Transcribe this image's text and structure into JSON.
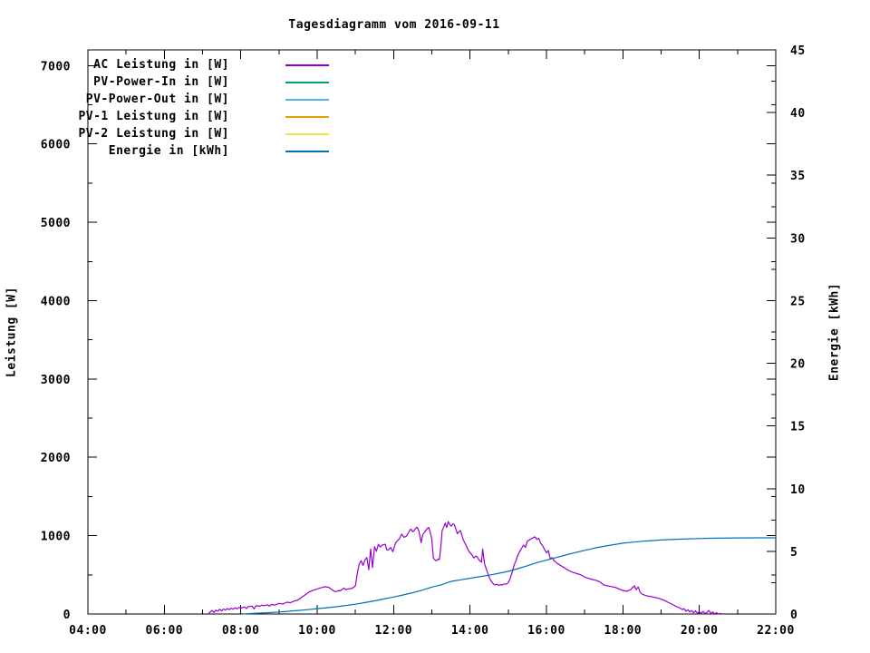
{
  "chart_data": {
    "type": "line",
    "title": "Tagesdiagramm vom 2016-09-11",
    "ylabel": "Leistung [W]",
    "y2label": "Energie [kWh]",
    "legend_position": "top-left-inside",
    "grid": false,
    "x_axis": {
      "lim": [
        4,
        22
      ],
      "major_values": [
        4,
        6,
        8,
        10,
        12,
        14,
        16,
        18,
        20,
        22
      ],
      "major_labels": [
        "04:00",
        "06:00",
        "08:00",
        "10:00",
        "12:00",
        "14:00",
        "16:00",
        "18:00",
        "20:00",
        "22:00"
      ],
      "minor_values": [
        5,
        7,
        9,
        11,
        13,
        15,
        17,
        19,
        21
      ]
    },
    "y_axis": {
      "lim": [
        0,
        7200
      ],
      "major_values": [
        0,
        1000,
        2000,
        3000,
        4000,
        5000,
        6000,
        7000
      ],
      "major_labels": [
        "0",
        "1000",
        "2000",
        "3000",
        "4000",
        "5000",
        "6000",
        "7000"
      ],
      "minor_values": [
        500,
        1500,
        2500,
        3500,
        4500,
        5500,
        6500
      ]
    },
    "y2_axis": {
      "lim": [
        0,
        45
      ],
      "major_values": [
        0,
        5,
        10,
        15,
        20,
        25,
        30,
        35,
        40,
        45
      ],
      "major_labels": [
        "0",
        "5",
        "10",
        "15",
        "20",
        "25",
        "30",
        "35",
        "40",
        "45"
      ],
      "minor_values": [
        2.5,
        7.5,
        12.5,
        17.5,
        22.5,
        27.5,
        32.5,
        37.5,
        42.5
      ]
    },
    "series": [
      {
        "name": "AC Leistung in [W]",
        "color": "#9400d3",
        "axis": "y1",
        "points": [
          [
            7.15,
            0
          ],
          [
            7.2,
            25
          ],
          [
            7.25,
            45
          ],
          [
            7.3,
            20
          ],
          [
            7.35,
            50
          ],
          [
            7.4,
            35
          ],
          [
            7.45,
            60
          ],
          [
            7.5,
            40
          ],
          [
            7.55,
            65
          ],
          [
            7.6,
            50
          ],
          [
            7.65,
            70
          ],
          [
            7.7,
            55
          ],
          [
            7.75,
            75
          ],
          [
            7.8,
            60
          ],
          [
            7.85,
            80
          ],
          [
            7.9,
            65
          ],
          [
            7.95,
            85
          ],
          [
            8.0,
            75
          ],
          [
            8.1,
            90
          ],
          [
            8.15,
            70
          ],
          [
            8.2,
            95
          ],
          [
            8.3,
            100
          ],
          [
            8.35,
            65
          ],
          [
            8.4,
            105
          ],
          [
            8.5,
            100
          ],
          [
            8.55,
            115
          ],
          [
            8.6,
            105
          ],
          [
            8.7,
            118
          ],
          [
            8.75,
            100
          ],
          [
            8.8,
            122
          ],
          [
            8.9,
            115
          ],
          [
            9.0,
            135
          ],
          [
            9.1,
            128
          ],
          [
            9.2,
            150
          ],
          [
            9.3,
            145
          ],
          [
            9.4,
            165
          ],
          [
            9.5,
            180
          ],
          [
            9.6,
            215
          ],
          [
            9.7,
            250
          ],
          [
            9.8,
            285
          ],
          [
            9.9,
            305
          ],
          [
            10.0,
            320
          ],
          [
            10.1,
            335
          ],
          [
            10.2,
            348
          ],
          [
            10.3,
            340
          ],
          [
            10.4,
            305
          ],
          [
            10.45,
            290
          ],
          [
            10.5,
            285
          ],
          [
            10.55,
            300
          ],
          [
            10.6,
            295
          ],
          [
            10.7,
            330
          ],
          [
            10.75,
            310
          ],
          [
            10.8,
            318
          ],
          [
            10.9,
            325
          ],
          [
            10.95,
            340
          ],
          [
            11.0,
            360
          ],
          [
            11.05,
            520
          ],
          [
            11.1,
            640
          ],
          [
            11.15,
            680
          ],
          [
            11.2,
            620
          ],
          [
            11.25,
            690
          ],
          [
            11.3,
            720
          ],
          [
            11.35,
            565
          ],
          [
            11.4,
            830
          ],
          [
            11.45,
            590
          ],
          [
            11.5,
            860
          ],
          [
            11.55,
            800
          ],
          [
            11.6,
            890
          ],
          [
            11.65,
            855
          ],
          [
            11.7,
            880
          ],
          [
            11.78,
            890
          ],
          [
            11.82,
            820
          ],
          [
            11.86,
            815
          ],
          [
            11.92,
            850
          ],
          [
            11.98,
            795
          ],
          [
            12.05,
            905
          ],
          [
            12.09,
            930
          ],
          [
            12.15,
            960
          ],
          [
            12.21,
            1020
          ],
          [
            12.27,
            980
          ],
          [
            12.33,
            990
          ],
          [
            12.39,
            1040
          ],
          [
            12.45,
            1085
          ],
          [
            12.5,
            1050
          ],
          [
            12.53,
            1060
          ],
          [
            12.57,
            1090
          ],
          [
            12.61,
            1110
          ],
          [
            12.66,
            1060
          ],
          [
            12.72,
            910
          ],
          [
            12.76,
            1010
          ],
          [
            12.8,
            1040
          ],
          [
            12.84,
            1065
          ],
          [
            12.88,
            1090
          ],
          [
            12.92,
            1105
          ],
          [
            12.96,
            1040
          ],
          [
            13.0,
            955
          ],
          [
            13.04,
            715
          ],
          [
            13.08,
            690
          ],
          [
            13.12,
            680
          ],
          [
            13.16,
            700
          ],
          [
            13.2,
            695
          ],
          [
            13.24,
            880
          ],
          [
            13.27,
            1065
          ],
          [
            13.31,
            1110
          ],
          [
            13.35,
            1160
          ],
          [
            13.39,
            1105
          ],
          [
            13.43,
            1180
          ],
          [
            13.47,
            1140
          ],
          [
            13.51,
            1120
          ],
          [
            13.55,
            1150
          ],
          [
            13.59,
            1140
          ],
          [
            13.63,
            1080
          ],
          [
            13.67,
            1025
          ],
          [
            13.71,
            1050
          ],
          [
            13.75,
            1065
          ],
          [
            13.79,
            1000
          ],
          [
            13.82,
            950
          ],
          [
            13.86,
            910
          ],
          [
            13.9,
            870
          ],
          [
            13.94,
            830
          ],
          [
            13.98,
            795
          ],
          [
            14.04,
            760
          ],
          [
            14.1,
            715
          ],
          [
            14.14,
            735
          ],
          [
            14.18,
            737
          ],
          [
            14.22,
            700
          ],
          [
            14.26,
            680
          ],
          [
            14.3,
            660
          ],
          [
            14.33,
            830
          ],
          [
            14.38,
            640
          ],
          [
            14.45,
            540
          ],
          [
            14.5,
            470
          ],
          [
            14.55,
            420
          ],
          [
            14.6,
            390
          ],
          [
            14.65,
            370
          ],
          [
            14.7,
            380
          ],
          [
            14.75,
            365
          ],
          [
            14.8,
            375
          ],
          [
            14.85,
            370
          ],
          [
            14.9,
            385
          ],
          [
            14.95,
            380
          ],
          [
            15.0,
            400
          ],
          [
            15.05,
            450
          ],
          [
            15.1,
            530
          ],
          [
            15.15,
            620
          ],
          [
            15.2,
            680
          ],
          [
            15.25,
            750
          ],
          [
            15.3,
            800
          ],
          [
            15.4,
            880
          ],
          [
            15.45,
            850
          ],
          [
            15.5,
            930
          ],
          [
            15.6,
            960
          ],
          [
            15.7,
            985
          ],
          [
            15.75,
            950
          ],
          [
            15.8,
            965
          ],
          [
            15.85,
            900
          ],
          [
            15.9,
            870
          ],
          [
            16.0,
            780
          ],
          [
            16.05,
            810
          ],
          [
            16.1,
            700
          ],
          [
            16.15,
            720
          ],
          [
            16.2,
            680
          ],
          [
            16.3,
            640
          ],
          [
            16.4,
            610
          ],
          [
            16.5,
            580
          ],
          [
            16.6,
            550
          ],
          [
            16.7,
            530
          ],
          [
            16.8,
            515
          ],
          [
            16.9,
            500
          ],
          [
            17.0,
            470
          ],
          [
            17.1,
            455
          ],
          [
            17.2,
            440
          ],
          [
            17.3,
            430
          ],
          [
            17.4,
            410
          ],
          [
            17.5,
            370
          ],
          [
            17.6,
            360
          ],
          [
            17.7,
            350
          ],
          [
            17.8,
            340
          ],
          [
            17.9,
            320
          ],
          [
            18.0,
            300
          ],
          [
            18.1,
            290
          ],
          [
            18.2,
            310
          ],
          [
            18.3,
            360
          ],
          [
            18.35,
            310
          ],
          [
            18.4,
            345
          ],
          [
            18.45,
            280
          ],
          [
            18.5,
            255
          ],
          [
            18.6,
            235
          ],
          [
            18.7,
            225
          ],
          [
            18.8,
            215
          ],
          [
            18.9,
            205
          ],
          [
            19.0,
            190
          ],
          [
            19.1,
            170
          ],
          [
            19.2,
            145
          ],
          [
            19.3,
            120
          ],
          [
            19.4,
            95
          ],
          [
            19.5,
            75
          ],
          [
            19.55,
            55
          ],
          [
            19.6,
            70
          ],
          [
            19.65,
            35
          ],
          [
            19.7,
            55
          ],
          [
            19.75,
            25
          ],
          [
            19.8,
            45
          ],
          [
            19.85,
            15
          ],
          [
            19.9,
            40
          ],
          [
            19.95,
            10
          ],
          [
            20.0,
            30
          ],
          [
            20.05,
            8
          ],
          [
            20.1,
            35
          ],
          [
            20.15,
            5
          ],
          [
            20.2,
            20
          ],
          [
            20.25,
            45
          ],
          [
            20.3,
            8
          ],
          [
            20.35,
            25
          ],
          [
            20.4,
            3
          ],
          [
            20.45,
            15
          ],
          [
            20.5,
            0
          ],
          [
            20.55,
            8
          ],
          [
            20.6,
            0
          ]
        ]
      },
      {
        "name": "PV-Power-In in [W]",
        "color": "#009e73",
        "axis": "y1",
        "points": []
      },
      {
        "name": "PV-Power-Out in [W]",
        "color": "#56b4e9",
        "axis": "y1",
        "points": []
      },
      {
        "name": "PV-1 Leistung in [W]",
        "color": "#e69f00",
        "axis": "y1",
        "points": []
      },
      {
        "name": "PV-2 Leistung in [W]",
        "color": "#f0e442",
        "axis": "y1",
        "points": []
      },
      {
        "name": "Energie in [kWh]",
        "color": "#0072b2",
        "axis": "y2",
        "points": [
          [
            8.05,
            0
          ],
          [
            8.3,
            0.04
          ],
          [
            8.5,
            0.07
          ],
          [
            8.75,
            0.11
          ],
          [
            9.0,
            0.16
          ],
          [
            9.25,
            0.22
          ],
          [
            9.5,
            0.28
          ],
          [
            9.75,
            0.35
          ],
          [
            10.0,
            0.43
          ],
          [
            10.25,
            0.5
          ],
          [
            10.5,
            0.58
          ],
          [
            10.75,
            0.68
          ],
          [
            11.0,
            0.78
          ],
          [
            11.25,
            0.91
          ],
          [
            11.5,
            1.05
          ],
          [
            11.75,
            1.2
          ],
          [
            12.0,
            1.35
          ],
          [
            12.25,
            1.52
          ],
          [
            12.5,
            1.7
          ],
          [
            12.75,
            1.9
          ],
          [
            13.0,
            2.15
          ],
          [
            13.25,
            2.33
          ],
          [
            13.5,
            2.6
          ],
          [
            13.75,
            2.73
          ],
          [
            14.0,
            2.85
          ],
          [
            14.25,
            2.97
          ],
          [
            14.5,
            3.1
          ],
          [
            14.75,
            3.25
          ],
          [
            15.0,
            3.4
          ],
          [
            15.25,
            3.62
          ],
          [
            15.5,
            3.85
          ],
          [
            15.75,
            4.1
          ],
          [
            16.0,
            4.3
          ],
          [
            16.25,
            4.5
          ],
          [
            16.5,
            4.7
          ],
          [
            16.75,
            4.9
          ],
          [
            17.0,
            5.08
          ],
          [
            17.25,
            5.25
          ],
          [
            17.5,
            5.4
          ],
          [
            17.75,
            5.53
          ],
          [
            18.0,
            5.65
          ],
          [
            18.25,
            5.73
          ],
          [
            18.5,
            5.8
          ],
          [
            18.75,
            5.85
          ],
          [
            19.0,
            5.9
          ],
          [
            19.25,
            5.94
          ],
          [
            19.5,
            5.97
          ],
          [
            19.75,
            6.0
          ],
          [
            20.0,
            6.02
          ],
          [
            20.25,
            6.04
          ],
          [
            20.5,
            6.05
          ],
          [
            21.0,
            6.07
          ],
          [
            21.5,
            6.08
          ],
          [
            22.0,
            6.08
          ]
        ]
      }
    ]
  }
}
